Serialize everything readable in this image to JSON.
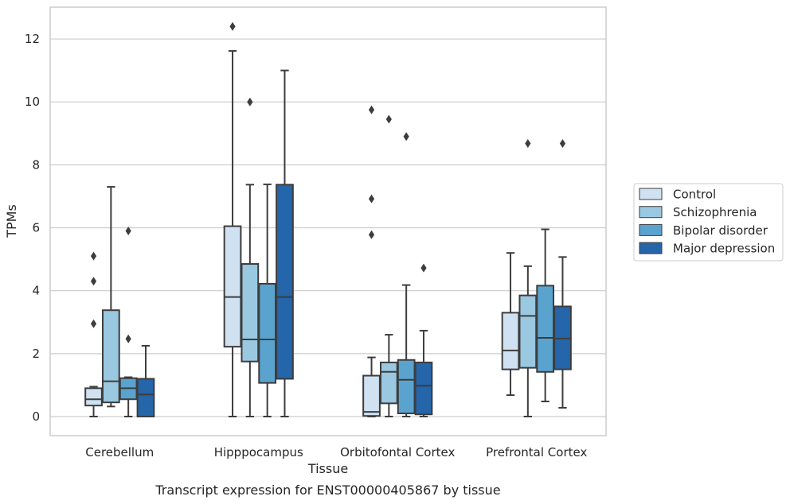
{
  "chart_data": {
    "type": "boxplot",
    "title": "Transcript expression for ENST00000405867 by tissue",
    "xlabel": "Tissue",
    "ylabel": "TPMs",
    "ylim": [
      -0.6,
      13
    ],
    "yticks": [
      0,
      2,
      4,
      6,
      8,
      10,
      12
    ],
    "grid": "horizontal",
    "legend_position": "right",
    "categories": [
      "Cerebellum",
      "Hipppocampus",
      "Orbitofontal Cortex",
      "Prefrontal Cortex"
    ],
    "series": [
      {
        "name": "Control",
        "color": "#d0e1f2",
        "boxes": [
          {
            "whislo": 0.0,
            "q1": 0.35,
            "med": 0.55,
            "q3": 0.9,
            "whishi": 0.95,
            "fliers": [
              5.1,
              4.3,
              2.95
            ]
          },
          {
            "whislo": 0.0,
            "q1": 2.22,
            "med": 3.8,
            "q3": 6.05,
            "whishi": 11.62,
            "fliers": [
              12.4
            ]
          },
          {
            "whislo": 0.0,
            "q1": 0.02,
            "med": 0.15,
            "q3": 1.3,
            "whishi": 1.88,
            "fliers": [
              9.75,
              6.92,
              5.78
            ]
          },
          {
            "whislo": 0.68,
            "q1": 1.5,
            "med": 2.1,
            "q3": 3.3,
            "whishi": 5.2,
            "fliers": []
          }
        ]
      },
      {
        "name": "Schizophrenia",
        "color": "#9ac8e0",
        "boxes": [
          {
            "whislo": 0.32,
            "q1": 0.45,
            "med": 1.12,
            "q3": 3.38,
            "whishi": 7.3,
            "fliers": []
          },
          {
            "whislo": 0.0,
            "q1": 1.75,
            "med": 2.45,
            "q3": 4.85,
            "whishi": 7.37,
            "fliers": [
              10.0
            ]
          },
          {
            "whislo": 0.0,
            "q1": 0.42,
            "med": 1.42,
            "q3": 1.72,
            "whishi": 2.6,
            "fliers": [
              9.45
            ]
          },
          {
            "whislo": 0.0,
            "q1": 1.55,
            "med": 3.2,
            "q3": 3.85,
            "whishi": 4.78,
            "fliers": [
              8.68
            ]
          }
        ]
      },
      {
        "name": "Bipolar disorder",
        "color": "#5ba3cf",
        "boxes": [
          {
            "whislo": 0.0,
            "q1": 0.55,
            "med": 0.9,
            "q3": 1.22,
            "whishi": 1.25,
            "fliers": [
              5.9,
              2.47
            ]
          },
          {
            "whislo": 0.0,
            "q1": 1.07,
            "med": 2.45,
            "q3": 4.22,
            "whishi": 7.38,
            "fliers": []
          },
          {
            "whislo": 0.0,
            "q1": 0.1,
            "med": 1.17,
            "q3": 1.8,
            "whishi": 4.18,
            "fliers": [
              8.9
            ]
          },
          {
            "whislo": 0.48,
            "q1": 1.42,
            "med": 2.5,
            "q3": 4.16,
            "whishi": 5.95,
            "fliers": []
          }
        ]
      },
      {
        "name": "Major depression",
        "color": "#2565a9",
        "boxes": [
          {
            "whislo": 0.0,
            "q1": 0.0,
            "med": 0.7,
            "q3": 1.2,
            "whishi": 2.25,
            "fliers": []
          },
          {
            "whislo": 0.0,
            "q1": 1.2,
            "med": 3.8,
            "q3": 7.37,
            "whishi": 11.0,
            "fliers": []
          },
          {
            "whislo": 0.0,
            "q1": 0.07,
            "med": 0.98,
            "q3": 1.72,
            "whishi": 2.73,
            "fliers": [
              4.72
            ]
          },
          {
            "whislo": 0.28,
            "q1": 1.5,
            "med": 2.48,
            "q3": 3.5,
            "whishi": 5.07,
            "fliers": [
              8.68
            ]
          }
        ]
      }
    ]
  }
}
